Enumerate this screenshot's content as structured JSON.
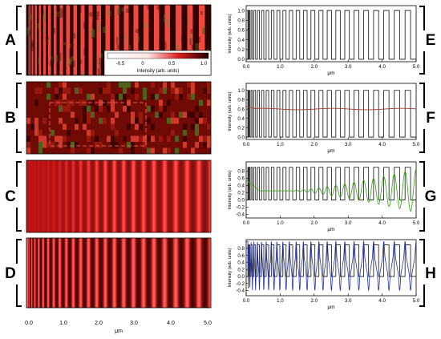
{
  "colors": {
    "image_red": "#e0302a",
    "image_dark": "#1a0000",
    "image_light": "#ffb0a8",
    "trace_square": "#111111",
    "trace_F": "#a04030",
    "trace_G": "#44aa22",
    "trace_H": "#2233aa"
  },
  "panels": {
    "left": [
      {
        "letter": "A",
        "pattern": "chirped-square-noisy"
      },
      {
        "letter": "B",
        "pattern": "noisy-dark-red"
      },
      {
        "letter": "C",
        "pattern": "smooth-sinusoid"
      },
      {
        "letter": "D",
        "pattern": "chirped-sinusoid"
      }
    ],
    "right_letters": [
      "E",
      "F",
      "G",
      "H"
    ]
  },
  "colorbar": {
    "ticks": [
      "-0.5",
      "0",
      "0.5",
      "1.0"
    ],
    "label": "Intensity (arb. units)"
  },
  "image_axis": {
    "ticks": [
      "0.0",
      "1.0",
      "2.0",
      "3.0",
      "4.0",
      "5.0"
    ],
    "label": "μm"
  },
  "chart_data": [
    {
      "panel": "E",
      "type": "line",
      "xlabel": "μm",
      "ylabel": "Intensity (arb. units)",
      "xlim": [
        0,
        5
      ],
      "ylim": [
        -0.05,
        1.1
      ],
      "x_ticks": [
        "0.0",
        "1.0",
        "2.0",
        "3.0",
        "4.0",
        "5.0"
      ],
      "y_ticks": [
        "0.0",
        "0.2",
        "0.4",
        "0.6",
        "0.8",
        "1.0"
      ],
      "y_tick_values": [
        0,
        0.2,
        0.4,
        0.6,
        0.8,
        1.0
      ],
      "series": [
        {
          "role": "target",
          "kind": "chirped-square",
          "low": 0,
          "high": 1.0,
          "edges_um": [
            0.05,
            5.0
          ]
        }
      ]
    },
    {
      "panel": "F",
      "type": "line",
      "xlabel": "μm",
      "ylabel": "Intensity (arb. units)",
      "xlim": [
        0,
        5
      ],
      "ylim": [
        -0.05,
        1.15
      ],
      "x_ticks": [
        "0.0",
        "1.0",
        "2.0",
        "3.0",
        "4.0",
        "5.0"
      ],
      "y_ticks": [
        "0.0",
        "0.2",
        "0.4",
        "0.6",
        "0.8",
        "1.0"
      ],
      "y_tick_values": [
        0,
        0.2,
        0.4,
        0.6,
        0.8,
        1.0
      ],
      "series": [
        {
          "role": "target",
          "kind": "chirped-square",
          "low": 0,
          "high": 1.0
        },
        {
          "role": "reconstruction",
          "kind": "flat",
          "value": 0.6
        }
      ]
    },
    {
      "panel": "G",
      "type": "line",
      "xlabel": "μm",
      "ylabel": "Intensity (arb. units)",
      "xlim": [
        0,
        5
      ],
      "ylim": [
        -0.5,
        1.05
      ],
      "x_ticks": [
        "0.0",
        "1.0",
        "2.0",
        "3.0",
        "4.0",
        "5.0"
      ],
      "y_ticks": [
        "-0.4",
        "-0.2",
        "0.0",
        "0.2",
        "0.4",
        "0.6",
        "0.8"
      ],
      "y_tick_values": [
        -0.4,
        -0.2,
        0,
        0.2,
        0.4,
        0.6,
        0.8
      ],
      "series": [
        {
          "role": "target",
          "kind": "chirped-square",
          "low": 0,
          "high": 0.9
        },
        {
          "role": "reconstruction",
          "kind": "smooth-growing-sinusoid",
          "center": 0.3,
          "amp_start": 0.0,
          "amp_end": 0.6
        }
      ]
    },
    {
      "panel": "H",
      "type": "line",
      "xlabel": "μm",
      "ylabel": "Intensity (arb. units)",
      "xlim": [
        0,
        5
      ],
      "ylim": [
        -0.55,
        1.05
      ],
      "x_ticks": [
        "0.0",
        "1.0",
        "2.0",
        "3.0",
        "4.0",
        "5.0"
      ],
      "y_ticks": [
        "-0.4",
        "-0.2",
        "0.0",
        "0.2",
        "0.4",
        "0.6",
        "0.8"
      ],
      "y_tick_values": [
        -0.4,
        -0.2,
        0,
        0.2,
        0.4,
        0.6,
        0.8
      ],
      "series": [
        {
          "role": "target",
          "kind": "chirped-square",
          "low": 0,
          "high": 0.9
        },
        {
          "role": "reconstruction",
          "kind": "ringing-square",
          "center": 0.3,
          "amp": 0.6
        }
      ]
    }
  ]
}
